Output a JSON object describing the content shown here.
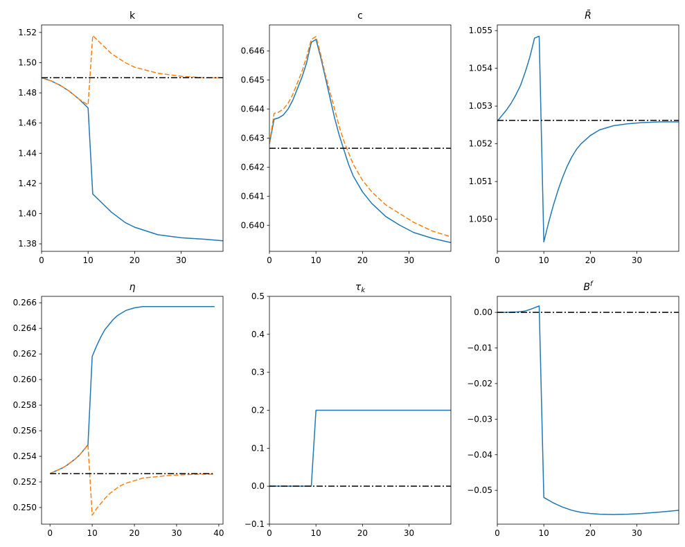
{
  "figure": {
    "background": "#ffffff"
  },
  "colors": {
    "series_blue": "#1f77b4",
    "series_orange": "#ff7f0e",
    "steady_state": "#000000"
  },
  "chart_data": [
    {
      "type": "line",
      "title": "k",
      "title_math": false,
      "xlim": [
        0,
        39
      ],
      "ylim": [
        1.375,
        1.525
      ],
      "xticks": [
        0,
        10,
        20,
        30
      ],
      "yticks": [
        1.38,
        1.4,
        1.42,
        1.44,
        1.46,
        1.48,
        1.5,
        1.52
      ],
      "ytick_labels": [
        "1.38",
        "1.40",
        "1.42",
        "1.44",
        "1.46",
        "1.48",
        "1.50",
        "1.52"
      ],
      "series": [
        {
          "style": "solid",
          "color": "#1f77b4",
          "x": [
            0,
            2,
            4,
            6,
            8,
            10,
            11,
            13,
            15,
            18,
            20,
            25,
            30,
            35,
            39
          ],
          "y": [
            1.49,
            1.488,
            1.485,
            1.481,
            1.476,
            1.47,
            1.413,
            1.407,
            1.401,
            1.394,
            1.391,
            1.386,
            1.384,
            1.383,
            1.382
          ]
        },
        {
          "style": "dashed",
          "color": "#ff7f0e",
          "x": [
            0,
            2,
            4,
            6,
            8,
            10,
            11,
            13,
            15,
            18,
            20,
            25,
            30,
            35,
            39
          ],
          "y": [
            1.49,
            1.488,
            1.485,
            1.481,
            1.476,
            1.472,
            1.518,
            1.512,
            1.506,
            1.5,
            1.497,
            1.493,
            1.491,
            1.49,
            1.49
          ]
        },
        {
          "style": "dashdot",
          "color": "#000000",
          "x": [
            0,
            39
          ],
          "y": [
            1.49,
            1.49
          ]
        }
      ]
    },
    {
      "type": "line",
      "title": "c",
      "title_math": false,
      "xlim": [
        0,
        39
      ],
      "ylim": [
        0.6391,
        0.6469
      ],
      "xticks": [
        0,
        10,
        20,
        30
      ],
      "yticks": [
        0.64,
        0.641,
        0.642,
        0.643,
        0.644,
        0.645,
        0.646
      ],
      "ytick_labels": [
        "0.640",
        "0.641",
        "0.642",
        "0.643",
        "0.644",
        "0.645",
        "0.646"
      ],
      "series": [
        {
          "style": "solid",
          "color": "#1f77b4",
          "x": [
            0,
            1,
            2,
            3,
            4,
            5,
            6,
            7,
            8,
            9,
            10,
            11,
            12,
            13,
            14,
            15,
            16,
            17,
            18,
            20,
            22,
            25,
            28,
            31,
            35,
            39
          ],
          "y": [
            0.6428,
            0.64365,
            0.6437,
            0.6438,
            0.644,
            0.6443,
            0.6447,
            0.6451,
            0.6456,
            0.6463,
            0.6464,
            0.6458,
            0.6451,
            0.6444,
            0.6437,
            0.6431,
            0.6426,
            0.6421,
            0.6417,
            0.64115,
            0.64075,
            0.6403,
            0.64,
            0.63975,
            0.63955,
            0.6394
          ]
        },
        {
          "style": "dashed",
          "color": "#ff7f0e",
          "x": [
            0,
            1,
            2,
            3,
            4,
            5,
            6,
            7,
            8,
            9,
            10,
            11,
            12,
            13,
            14,
            15,
            16,
            17,
            18,
            20,
            22,
            25,
            28,
            31,
            35,
            39
          ],
          "y": [
            0.6428,
            0.64385,
            0.6439,
            0.644,
            0.6442,
            0.6445,
            0.6449,
            0.6453,
            0.6458,
            0.6464,
            0.6465,
            0.6459,
            0.6452,
            0.6446,
            0.644,
            0.6434,
            0.6429,
            0.6425,
            0.6421,
            0.64155,
            0.64115,
            0.6407,
            0.6404,
            0.6401,
            0.6398,
            0.6396
          ]
        },
        {
          "style": "dashdot",
          "color": "#000000",
          "x": [
            0,
            39
          ],
          "y": [
            0.64265,
            0.64265
          ]
        }
      ]
    },
    {
      "type": "line",
      "title": "R̄",
      "title_math": true,
      "xlim": [
        0,
        39
      ],
      "ylim": [
        1.04915,
        1.05515
      ],
      "xticks": [
        0,
        10,
        20,
        30
      ],
      "yticks": [
        1.05,
        1.051,
        1.052,
        1.053,
        1.054,
        1.055
      ],
      "ytick_labels": [
        "1.050",
        "1.051",
        "1.052",
        "1.053",
        "1.054",
        "1.055"
      ],
      "series": [
        {
          "style": "solid",
          "color": "#1f77b4",
          "x": [
            0,
            1,
            2,
            3,
            4,
            5,
            6,
            7,
            8,
            9,
            10,
            11,
            12,
            13,
            14,
            15,
            16,
            17,
            18,
            20,
            22,
            25,
            28,
            31,
            35,
            39
          ],
          "y": [
            1.0526,
            1.05275,
            1.0529,
            1.05308,
            1.0533,
            1.05355,
            1.0539,
            1.0543,
            1.0548,
            1.05485,
            1.0494,
            1.0499,
            1.05035,
            1.05075,
            1.0511,
            1.0514,
            1.05165,
            1.05185,
            1.052,
            1.05222,
            1.05237,
            1.05248,
            1.05253,
            1.05256,
            1.05258,
            1.05258
          ]
        },
        {
          "style": "dashdot",
          "color": "#000000",
          "x": [
            0,
            39
          ],
          "y": [
            1.05262,
            1.05262
          ]
        }
      ]
    },
    {
      "type": "line",
      "title": "η",
      "title_math": true,
      "xlim": [
        -2,
        41
      ],
      "ylim": [
        0.2487,
        0.2665
      ],
      "xticks": [
        0,
        10,
        20,
        30,
        40
      ],
      "yticks": [
        0.25,
        0.252,
        0.254,
        0.256,
        0.258,
        0.26,
        0.262,
        0.264,
        0.266
      ],
      "ytick_labels": [
        "0.250",
        "0.252",
        "0.254",
        "0.256",
        "0.258",
        "0.260",
        "0.262",
        "0.264",
        "0.266"
      ],
      "series": [
        {
          "style": "solid",
          "color": "#1f77b4",
          "x": [
            0,
            1,
            2,
            3,
            4,
            5,
            6,
            7,
            8,
            9,
            10,
            11,
            12,
            13,
            14,
            15,
            16,
            17,
            18,
            20,
            22,
            25,
            28,
            31,
            35,
            39
          ],
          "y": [
            0.25265,
            0.2528,
            0.25295,
            0.2531,
            0.2533,
            0.25355,
            0.2538,
            0.2541,
            0.2545,
            0.2549,
            0.2618,
            0.2626,
            0.2633,
            0.2639,
            0.2643,
            0.2647,
            0.265,
            0.2652,
            0.2654,
            0.2656,
            0.2657,
            0.2657,
            0.2657,
            0.2657,
            0.2657,
            0.2657
          ]
        },
        {
          "style": "dashed",
          "color": "#ff7f0e",
          "x": [
            0,
            1,
            2,
            3,
            4,
            5,
            6,
            7,
            8,
            9,
            10,
            11,
            12,
            13,
            14,
            15,
            16,
            17,
            18,
            20,
            22,
            25,
            28,
            31,
            35,
            39
          ],
          "y": [
            0.25265,
            0.2528,
            0.25295,
            0.2531,
            0.2533,
            0.25355,
            0.2538,
            0.2541,
            0.2545,
            0.2549,
            0.2494,
            0.2499,
            0.2503,
            0.2507,
            0.25105,
            0.2513,
            0.25155,
            0.25175,
            0.2519,
            0.2521,
            0.2523,
            0.2524,
            0.2525,
            0.25255,
            0.2526,
            0.2526
          ]
        },
        {
          "style": "dashdot",
          "color": "#000000",
          "x": [
            0,
            39
          ],
          "y": [
            0.25265,
            0.25265
          ]
        }
      ]
    },
    {
      "type": "line",
      "title": "τk",
      "title_math": true,
      "xlim": [
        0,
        39
      ],
      "ylim": [
        -0.1,
        0.5
      ],
      "xticks": [
        0,
        10,
        20,
        30
      ],
      "yticks": [
        -0.1,
        0.0,
        0.1,
        0.2,
        0.3,
        0.4,
        0.5
      ],
      "ytick_labels": [
        "−0.1",
        "0.0",
        "0.1",
        "0.2",
        "0.3",
        "0.4",
        "0.5"
      ],
      "series": [
        {
          "style": "solid",
          "color": "#1f77b4",
          "x": [
            0,
            9,
            10,
            39
          ],
          "y": [
            0.0,
            0.0,
            0.2,
            0.2
          ]
        },
        {
          "style": "dashdot",
          "color": "#000000",
          "x": [
            0,
            39
          ],
          "y": [
            0.0,
            0.0
          ]
        }
      ]
    },
    {
      "type": "line",
      "title": "Bf",
      "title_math": true,
      "xlim": [
        0,
        39
      ],
      "ylim": [
        -0.0595,
        0.0045
      ],
      "xticks": [
        0,
        10,
        20,
        30
      ],
      "yticks": [
        -0.05,
        -0.04,
        -0.03,
        -0.02,
        -0.01,
        0.0
      ],
      "ytick_labels": [
        "−0.05",
        "−0.04",
        "−0.03",
        "−0.02",
        "−0.01",
        "0.00"
      ],
      "series": [
        {
          "style": "solid",
          "color": "#1f77b4",
          "x": [
            0,
            2,
            4,
            5,
            6,
            7,
            8,
            9,
            10,
            12,
            14,
            16,
            18,
            20,
            22,
            25,
            28,
            31,
            35,
            39
          ],
          "y": [
            0.0,
            0.0,
            0.0001,
            0.0002,
            0.0004,
            0.0008,
            0.0013,
            0.0018,
            -0.052,
            -0.0535,
            -0.0547,
            -0.0556,
            -0.0562,
            -0.0565,
            -0.0567,
            -0.0568,
            -0.0567,
            -0.0565,
            -0.0561,
            -0.0556
          ]
        },
        {
          "style": "dashdot",
          "color": "#000000",
          "x": [
            0,
            39
          ],
          "y": [
            0.0,
            0.0
          ]
        }
      ]
    }
  ]
}
